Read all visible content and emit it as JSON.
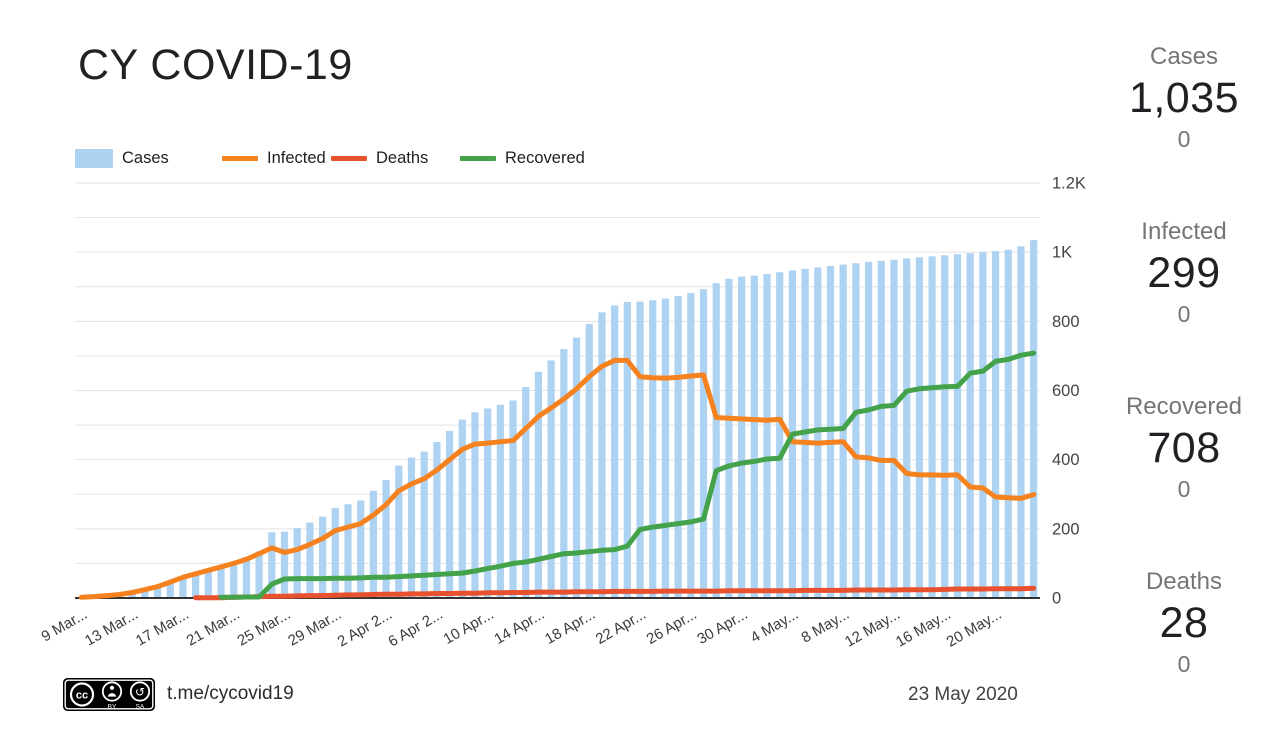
{
  "header": {
    "title": "CY COVID-19"
  },
  "colors": {
    "cases": "#aed2f2",
    "infected": "#f5821f",
    "deaths": "#e8512d",
    "recovered": "#44a24a"
  },
  "legend": {
    "items": [
      {
        "id": "cases",
        "label": "Cases",
        "swatch": "box",
        "color": "#aed2f2"
      },
      {
        "id": "infected",
        "label": "Infected",
        "swatch": "line",
        "color": "#f5821f"
      },
      {
        "id": "deaths",
        "label": "Deaths",
        "swatch": "line",
        "color": "#e8512d"
      },
      {
        "id": "recovered",
        "label": "Recovered",
        "swatch": "line",
        "color": "#44a24a"
      }
    ]
  },
  "stats": [
    {
      "id": "cases",
      "label": "Cases",
      "value": "1,035",
      "delta": "0"
    },
    {
      "id": "infected",
      "label": "Infected",
      "value": "299",
      "delta": "0"
    },
    {
      "id": "recovered",
      "label": "Recovered",
      "value": "708",
      "delta": "0"
    },
    {
      "id": "deaths",
      "label": "Deaths",
      "value": "28",
      "delta": "0"
    }
  ],
  "footer": {
    "license_badge": "CC BY-SA",
    "link": "t.me/cycovid19",
    "date": "23 May 2020"
  },
  "chart_data": {
    "type": "combo",
    "title": "CY COVID-19",
    "ylim": [
      0,
      1200
    ],
    "grid_step": 100,
    "legend_position": "top",
    "y_axis_side": "right",
    "y_ticks": [
      {
        "label": "0",
        "value": 0
      },
      {
        "label": "200",
        "value": 200
      },
      {
        "label": "400",
        "value": 400
      },
      {
        "label": "600",
        "value": 600
      },
      {
        "label": "800",
        "value": 800
      },
      {
        "label": "1K",
        "value": 1000
      },
      {
        "label": "1.2K",
        "value": 1200
      }
    ],
    "x_tick_labels": [
      "9 Mar...",
      "13 Mar...",
      "17 Mar...",
      "21 Mar...",
      "25 Mar...",
      "29 Mar...",
      "2 Apr 2...",
      "6 Apr 2...",
      "10 Apr...",
      "14 Apr...",
      "18 Apr...",
      "22 Apr...",
      "26 Apr...",
      "30 Apr...",
      "4 May...",
      "8 May...",
      "12 May...",
      "16 May...",
      "20 May..."
    ],
    "x_tick_indices": [
      0,
      4,
      8,
      12,
      16,
      20,
      24,
      28,
      32,
      36,
      40,
      44,
      48,
      52,
      56,
      60,
      64,
      68,
      72
    ],
    "x": [
      "9 Mar 2020",
      "10 Mar 2020",
      "11 Mar 2020",
      "12 Mar 2020",
      "13 Mar 2020",
      "14 Mar 2020",
      "15 Mar 2020",
      "16 Mar 2020",
      "17 Mar 2020",
      "18 Mar 2020",
      "19 Mar 2020",
      "20 Mar 2020",
      "21 Mar 2020",
      "22 Mar 2020",
      "23 Mar 2020",
      "24 Mar 2020",
      "25 Mar 2020",
      "26 Mar 2020",
      "27 Mar 2020",
      "28 Mar 2020",
      "29 Mar 2020",
      "30 Mar 2020",
      "31 Mar 2020",
      "1 Apr 2020",
      "2 Apr 2020",
      "3 Apr 2020",
      "4 Apr 2020",
      "5 Apr 2020",
      "6 Apr 2020",
      "7 Apr 2020",
      "8 Apr 2020",
      "9 Apr 2020",
      "10 Apr 2020",
      "11 Apr 2020",
      "12 Apr 2020",
      "13 Apr 2020",
      "14 Apr 2020",
      "15 Apr 2020",
      "16 Apr 2020",
      "17 Apr 2020",
      "18 Apr 2020",
      "19 Apr 2020",
      "20 Apr 2020",
      "21 Apr 2020",
      "22 Apr 2020",
      "23 Apr 2020",
      "24 Apr 2020",
      "25 Apr 2020",
      "26 Apr 2020",
      "27 Apr 2020",
      "28 Apr 2020",
      "29 Apr 2020",
      "30 Apr 2020",
      "1 May 2020",
      "2 May 2020",
      "3 May 2020",
      "4 May 2020",
      "5 May 2020",
      "6 May 2020",
      "7 May 2020",
      "8 May 2020",
      "9 May 2020",
      "10 May 2020",
      "11 May 2020",
      "12 May 2020",
      "13 May 2020",
      "14 May 2020",
      "15 May 2020",
      "16 May 2020",
      "17 May 2020",
      "18 May 2020",
      "19 May 2020",
      "20 May 2020",
      "21 May 2020",
      "22 May 2020",
      "23 May 2020"
    ],
    "series": [
      {
        "name": "Cases",
        "type": "bar",
        "color": "#aed2f2",
        "values": [
          2,
          4,
          7,
          10,
          16,
          24,
          33,
          46,
          60,
          71,
          81,
          93,
          104,
          118,
          135,
          190,
          192,
          202,
          218,
          235,
          260,
          271,
          282,
          310,
          341,
          383,
          406,
          423,
          451,
          483,
          516,
          537,
          548,
          559,
          571,
          610,
          654,
          687,
          720,
          753,
          792,
          826,
          846,
          856,
          857,
          861,
          866,
          873,
          882,
          893,
          910,
          923,
          929,
          932,
          937,
          942,
          947,
          952,
          956,
          960,
          964,
          968,
          972,
          975,
          978,
          982,
          985,
          988,
          991,
          994,
          997,
          1000,
          1003,
          1007,
          1017,
          1035
        ]
      },
      {
        "name": "Infected",
        "type": "line",
        "color": "#f5821f",
        "values": [
          2,
          4,
          7,
          10,
          16,
          24,
          33,
          46,
          60,
          70,
          80,
          90,
          100,
          112,
          128,
          145,
          132,
          140,
          155,
          172,
          195,
          205,
          215,
          240,
          270,
          310,
          330,
          345,
          370,
          400,
          430,
          445,
          448,
          452,
          455,
          490,
          525,
          550,
          575,
          605,
          640,
          670,
          687,
          687,
          640,
          637,
          636,
          638,
          642,
          645,
          522,
          520,
          518,
          516,
          514,
          517,
          452,
          450,
          448,
          450,
          452,
          408,
          405,
          398,
          398,
          360,
          356,
          356,
          355,
          356,
          321,
          318,
          292,
          290,
          288,
          299
        ]
      },
      {
        "name": "Deaths",
        "type": "line",
        "color": "#e8512d",
        "values": [
          null,
          null,
          null,
          null,
          null,
          null,
          null,
          null,
          null,
          1,
          1,
          1,
          2,
          3,
          4,
          5,
          5,
          6,
          7,
          7,
          8,
          9,
          9,
          10,
          11,
          11,
          12,
          12,
          13,
          13,
          14,
          14,
          15,
          15,
          16,
          16,
          17,
          17,
          17,
          18,
          18,
          18,
          19,
          19,
          19,
          19,
          20,
          20,
          20,
          20,
          20,
          21,
          21,
          21,
          21,
          21,
          21,
          22,
          22,
          22,
          22,
          23,
          23,
          23,
          23,
          24,
          24,
          24,
          25,
          26,
          26,
          26,
          27,
          27,
          27,
          28
        ]
      },
      {
        "name": "Recovered",
        "type": "line",
        "color": "#44a24a",
        "values": [
          null,
          null,
          null,
          null,
          null,
          null,
          null,
          null,
          null,
          null,
          null,
          2,
          2,
          3,
          3,
          40,
          55,
          56,
          56,
          56,
          57,
          57,
          58,
          60,
          60,
          62,
          64,
          66,
          68,
          70,
          72,
          78,
          85,
          92,
          100,
          104,
          112,
          120,
          128,
          130,
          134,
          138,
          140,
          150,
          198,
          205,
          210,
          215,
          220,
          228,
          368,
          382,
          390,
          395,
          402,
          404,
          474,
          480,
          486,
          488,
          490,
          537,
          544,
          554,
          557,
          598,
          605,
          608,
          611,
          612,
          650,
          656,
          684,
          690,
          702,
          708
        ]
      }
    ]
  }
}
